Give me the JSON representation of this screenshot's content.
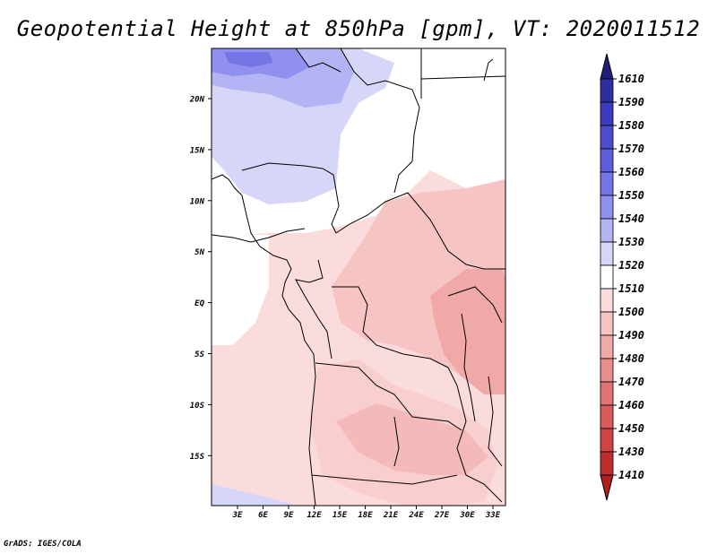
{
  "title": "Geopotential Height at 850hPa [gpm], VT: 2020011512",
  "footer": "GrADS: IGES/COLA",
  "map": {
    "lat_labels": [
      "20N",
      "15N",
      "10N",
      "5N",
      "EQ",
      "5S",
      "10S",
      "15S"
    ],
    "lon_labels": [
      "3E",
      "6E",
      "9E",
      "12E",
      "15E",
      "18E",
      "21E",
      "24E",
      "27E",
      "30E",
      "33E"
    ]
  },
  "colorbar": {
    "levels": [
      "1610",
      "1590",
      "1580",
      "1570",
      "1560",
      "1550",
      "1540",
      "1530",
      "1520",
      "1510",
      "1500",
      "1490",
      "1480",
      "1470",
      "1460",
      "1450",
      "1430",
      "1410"
    ],
    "colors": [
      "#1e1e7a",
      "#2e2ea3",
      "#3b3bbf",
      "#4c4ccf",
      "#5e5edc",
      "#7575e6",
      "#9090ee",
      "#b4b4f4",
      "#d6d6f8",
      "#ffffff",
      "#fbdcdc",
      "#f7c4c4",
      "#f0a8a8",
      "#e98e8e",
      "#e07474",
      "#d85a5a",
      "#ce4444",
      "#be2d2d"
    ]
  }
}
